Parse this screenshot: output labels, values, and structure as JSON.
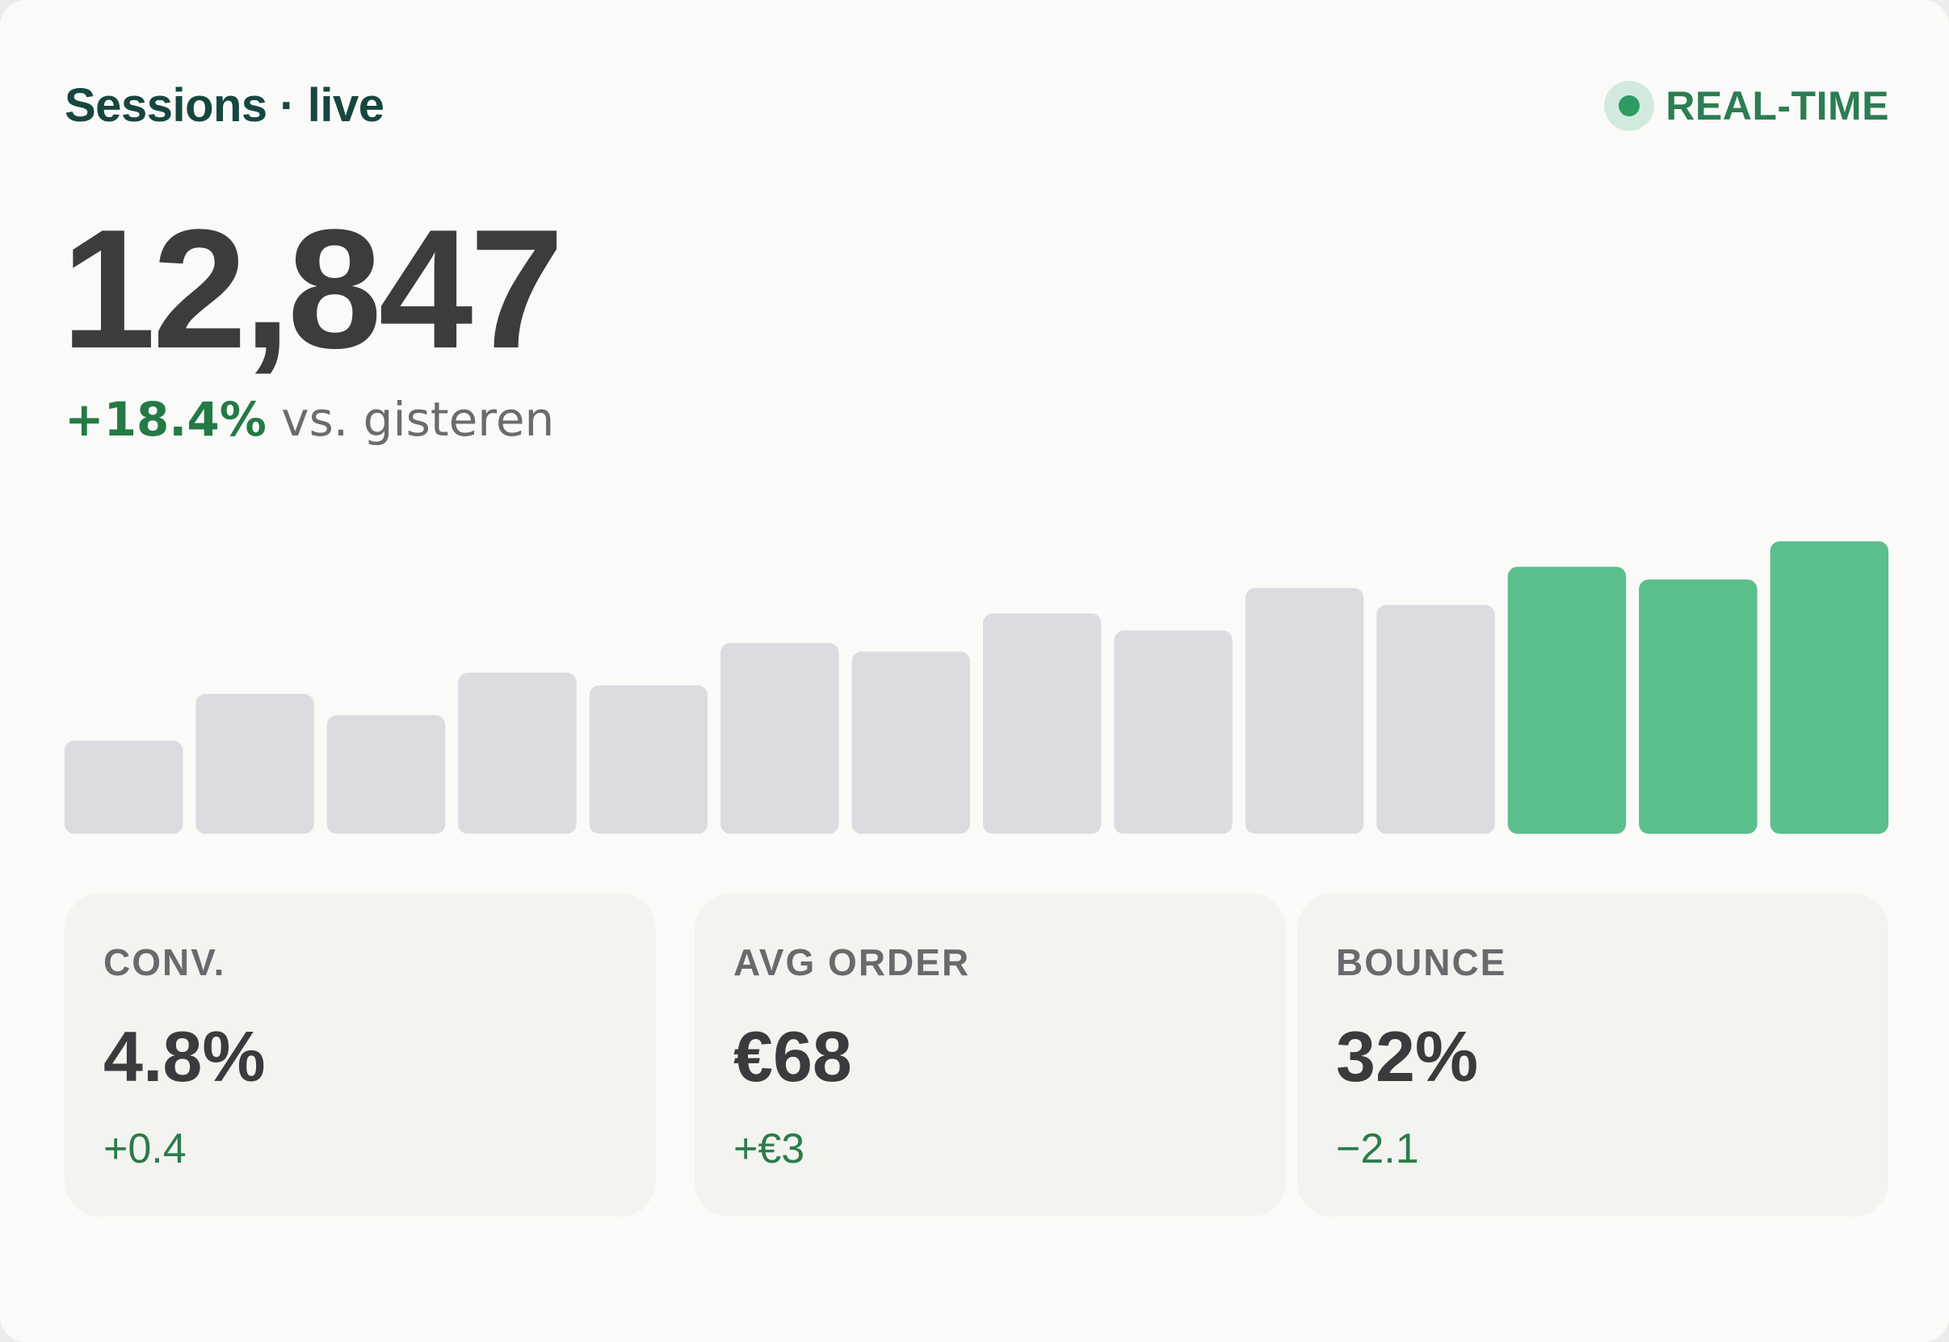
{
  "header": {
    "title": "Sessions · live",
    "badge_label": "REAL-TIME"
  },
  "summary": {
    "value": "12,847",
    "change": "+18.4%",
    "comparison": "vs. gisteren"
  },
  "colors": {
    "accent_green": "#5bbf8c",
    "muted_bar": "#dcdce0",
    "positive_text": "#237a45"
  },
  "chart_data": {
    "type": "bar",
    "values": [
      22,
      33,
      28,
      38,
      35,
      45,
      43,
      52,
      48,
      58,
      54,
      63,
      60,
      69
    ],
    "highlighted": [
      false,
      false,
      false,
      false,
      false,
      false,
      false,
      false,
      false,
      false,
      false,
      true,
      true,
      true
    ],
    "ylim": [
      0,
      100
    ],
    "grid": false
  },
  "metrics": [
    {
      "label": "CONV.",
      "value": "4.8%",
      "delta": "+0.4"
    },
    {
      "label": "AVG ORDER",
      "value": "€68",
      "delta": "+€3"
    },
    {
      "label": "BOUNCE",
      "value": "32%",
      "delta": "−2.1"
    }
  ]
}
